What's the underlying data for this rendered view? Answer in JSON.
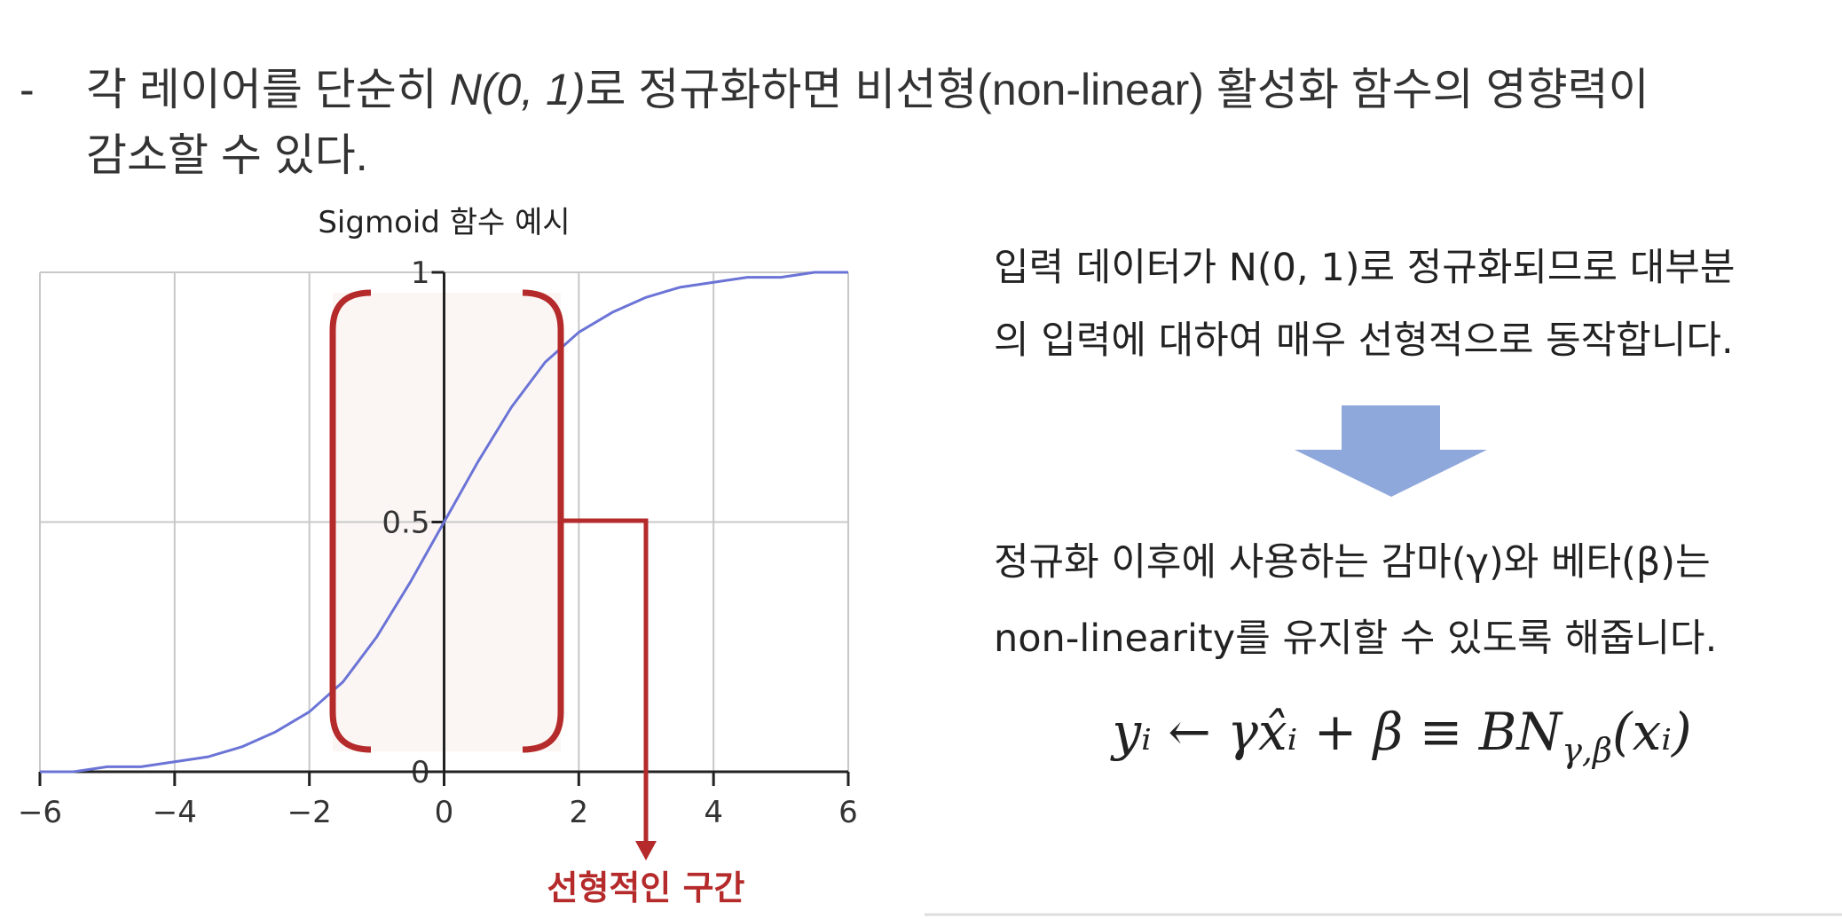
{
  "bullet": {
    "marker": "-",
    "line1_before": "각 레이어를 단순히 ",
    "line1_italic": "N(0, 1)",
    "line1_after": "로 정규화하면 비선형(non-linear) 활성화 함수의 영향력이",
    "line2": "감소할 수 있다."
  },
  "chart_data": {
    "type": "line",
    "title": "Sigmoid 함수 예시",
    "annotation": "선형적인 구간",
    "x": [
      -6,
      -5.5,
      -5,
      -4.5,
      -4,
      -3.5,
      -3,
      -2.5,
      -2,
      -1.5,
      -1,
      -0.5,
      0,
      0.5,
      1,
      1.5,
      2,
      2.5,
      3,
      3.5,
      4,
      4.5,
      5,
      5.5,
      6
    ],
    "values": [
      0.0,
      0.0,
      0.01,
      0.01,
      0.02,
      0.03,
      0.05,
      0.08,
      0.12,
      0.18,
      0.27,
      0.38,
      0.5,
      0.62,
      0.73,
      0.82,
      0.88,
      0.92,
      0.95,
      0.97,
      0.98,
      0.99,
      0.99,
      1.0,
      1.0
    ],
    "color": "#6b74d6",
    "xlim": [
      -6,
      6
    ],
    "ylim": [
      0,
      1
    ],
    "xticks": [
      {
        "value": -6,
        "label": "−6"
      },
      {
        "value": -4,
        "label": "−4"
      },
      {
        "value": -2,
        "label": "−2"
      },
      0,
      2,
      4,
      6
    ],
    "yticks": [
      0,
      0.5,
      1
    ],
    "grid": true
  },
  "panel": {
    "para1": [
      "입력 데이터가 N(0, 1)로 정규화되므로 대부분",
      "의 입력에 대하여 매우 선형적으로 동작합니다."
    ],
    "para2": [
      "정규화 이후에 사용하는 감마(γ)와 베타(β)는",
      "non-linearity를 유지할 수 있도록 해줍니다."
    ],
    "formula": {
      "main": "yᵢ ← γx̂ᵢ + β ≡ BN",
      "subscript": "γ,β",
      "tail": "(xᵢ)"
    }
  }
}
